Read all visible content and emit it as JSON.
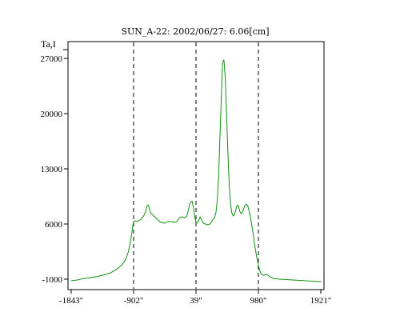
{
  "chart_data": {
    "type": "line",
    "title": "SUN_A-22: 2002/06/27: 6.06[cm]",
    "ylabel": "Ta,I",
    "xlabel": "",
    "xlim": [
      -1843,
      1921
    ],
    "ylim": [
      -1000,
      29000
    ],
    "x_ticks": [
      {
        "value": -1843,
        "label": "-1843\""
      },
      {
        "value": -902,
        "label": "-902\""
      },
      {
        "value": 39,
        "label": "39\""
      },
      {
        "value": 980,
        "label": "980\""
      },
      {
        "value": 1921,
        "label": "1921\""
      }
    ],
    "y_ticks": [
      {
        "value": -1000,
        "label": "-1000"
      },
      {
        "value": 6000,
        "label": "6000"
      },
      {
        "value": 13000,
        "label": "13000"
      },
      {
        "value": 20000,
        "label": "20000"
      },
      {
        "value": 27000,
        "label": "27000"
      }
    ],
    "vlines": [
      -902,
      39,
      980
    ],
    "grid": false,
    "colors": {
      "series": "#109010",
      "vline": "#000000",
      "frame": "#000000"
    },
    "series": [
      {
        "x": [
          -1843,
          -1750,
          -1650,
          -1550,
          -1450,
          -1350,
          -1250,
          -1150,
          -1080,
          -1020,
          -980,
          -950,
          -930,
          -915,
          -902,
          -880,
          -860,
          -830,
          -800,
          -780,
          -750,
          -720,
          -700,
          -680,
          -660,
          -640,
          -620,
          -600,
          -580,
          -550,
          -510,
          -470,
          -430,
          -400,
          -370,
          -330,
          -290,
          -250,
          -210,
          -170,
          -130,
          -100,
          -80,
          -60,
          -40,
          -20,
          0,
          20,
          39,
          60,
          80,
          100,
          120,
          140,
          160,
          180,
          210,
          240,
          260,
          280,
          300,
          320,
          340,
          360,
          380,
          400,
          420,
          440,
          460,
          480,
          500,
          520,
          540,
          560,
          580,
          600,
          620,
          640,
          660,
          680,
          700,
          720,
          740,
          760,
          780,
          800,
          820,
          840,
          860,
          880,
          900,
          920,
          940,
          960,
          980,
          1000,
          1020,
          1050,
          1080,
          1110,
          1140,
          1170,
          1200,
          1250,
          1300,
          1400,
          1500,
          1600,
          1700,
          1800,
          1921
        ],
        "y": [
          -1200,
          -1100,
          -900,
          -800,
          -650,
          -450,
          -200,
          300,
          800,
          1500,
          2500,
          3700,
          4800,
          5700,
          6300,
          6400,
          6350,
          6400,
          6550,
          6700,
          7000,
          7600,
          8300,
          8400,
          7800,
          7300,
          7200,
          7000,
          6900,
          6650,
          6300,
          6150,
          6100,
          6250,
          6350,
          6300,
          6200,
          6300,
          6800,
          6900,
          6750,
          7000,
          7600,
          8400,
          8800,
          8900,
          8100,
          6900,
          6200,
          6150,
          6450,
          6900,
          6600,
          6200,
          6050,
          6000,
          5900,
          5950,
          6100,
          6400,
          6600,
          6800,
          7500,
          9000,
          12000,
          17000,
          22000,
          26500,
          26800,
          24500,
          20000,
          15000,
          11000,
          8500,
          7400,
          7000,
          7200,
          7800,
          8400,
          8300,
          7600,
          7300,
          7500,
          8000,
          8400,
          8500,
          8300,
          7700,
          6900,
          5900,
          4800,
          3600,
          2500,
          1600,
          800,
          100,
          -300,
          -500,
          -450,
          -400,
          -600,
          -800,
          -900,
          -950,
          -1000,
          -1050,
          -1100,
          -1150,
          -1200,
          -1250,
          -1300
        ]
      }
    ]
  }
}
